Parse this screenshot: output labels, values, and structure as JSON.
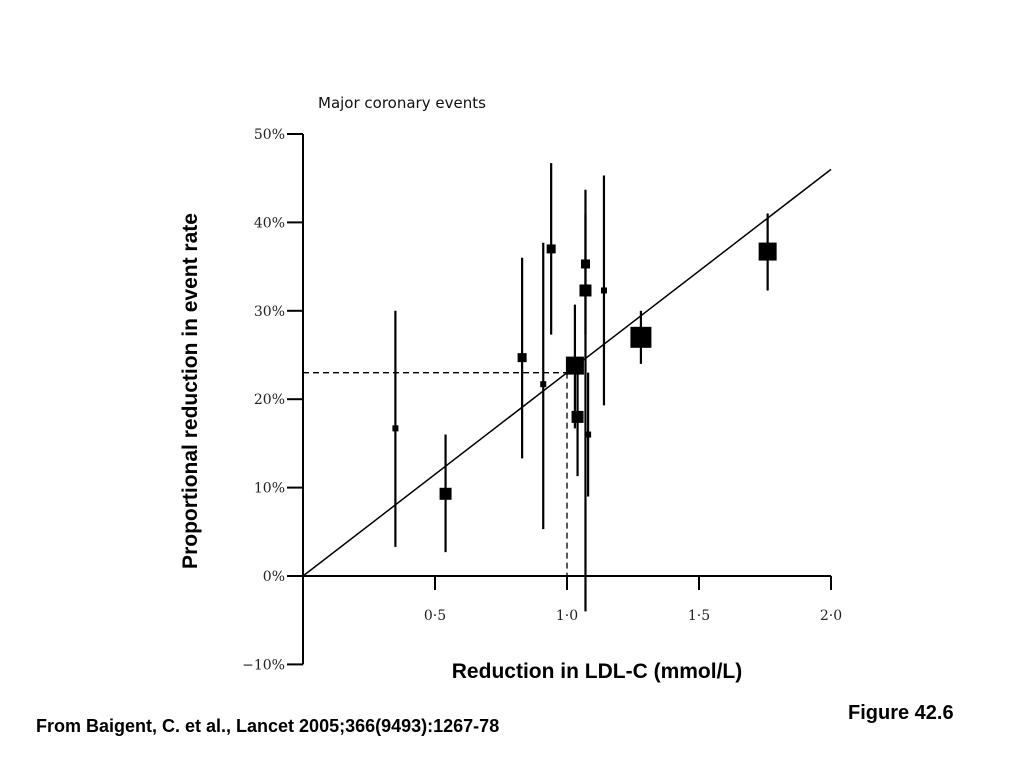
{
  "figure_label": "Figure 42.6",
  "source": "From Baigent, C. et al., Lancet 2005;366(9493):1267-78",
  "chart_data": {
    "type": "scatter",
    "title": "Major coronary events",
    "xlabel": "Reduction in LDL-C (mmol/L)",
    "ylabel": "Proportional reduction in event rate",
    "xlim": [
      0.0,
      2.0
    ],
    "ylim": [
      -10,
      50
    ],
    "x_ticks": [
      "0·5",
      "1·0",
      "1·5",
      "2·0"
    ],
    "x_tick_values": [
      0.5,
      1.0,
      1.5,
      2.0
    ],
    "y_ticks": [
      "−10%",
      "0%",
      "10%",
      "20%",
      "30%",
      "40%",
      "50%"
    ],
    "y_tick_values": [
      -10,
      0,
      10,
      20,
      30,
      40,
      50
    ],
    "grid": false,
    "legend": "none",
    "series": [
      {
        "points": [
          {
            "x": 0.35,
            "y": 16.7,
            "low": 3.3,
            "high": 30.0,
            "weight": 1
          },
          {
            "x": 0.54,
            "y": 9.3,
            "low": 2.7,
            "high": 16.0,
            "weight": 3
          },
          {
            "x": 0.83,
            "y": 24.7,
            "low": 13.3,
            "high": 36.0,
            "weight": 2
          },
          {
            "x": 0.91,
            "y": 21.7,
            "low": 5.3,
            "high": 37.7,
            "weight": 1
          },
          {
            "x": 0.94,
            "y": 37.0,
            "low": 27.3,
            "high": 46.7,
            "weight": 2
          },
          {
            "x": 1.03,
            "y": 23.8,
            "low": 16.7,
            "high": 30.7,
            "weight": 5
          },
          {
            "x": 1.04,
            "y": 18.0,
            "low": 11.3,
            "high": 24.0,
            "weight": 3
          },
          {
            "x": 1.07,
            "y": 35.3,
            "low": 27.3,
            "high": 43.7,
            "weight": 2
          },
          {
            "x": 1.07,
            "y": 32.3,
            "low": -4.0,
            "high": 41.0,
            "weight": 3
          },
          {
            "x": 1.08,
            "y": 16.0,
            "low": 9.0,
            "high": 23.0,
            "weight": 1
          },
          {
            "x": 1.14,
            "y": 32.3,
            "low": 19.3,
            "high": 45.3,
            "weight": 1
          },
          {
            "x": 1.28,
            "y": 27.0,
            "low": 24.0,
            "high": 30.0,
            "weight": 6
          },
          {
            "x": 1.76,
            "y": 36.7,
            "low": 32.3,
            "high": 41.0,
            "weight": 5
          }
        ]
      }
    ],
    "regression_line": {
      "x": [
        0.0,
        2.0
      ],
      "y": [
        0.0,
        46.0
      ]
    },
    "reference": {
      "x": 1.0,
      "y": 23.0
    }
  }
}
